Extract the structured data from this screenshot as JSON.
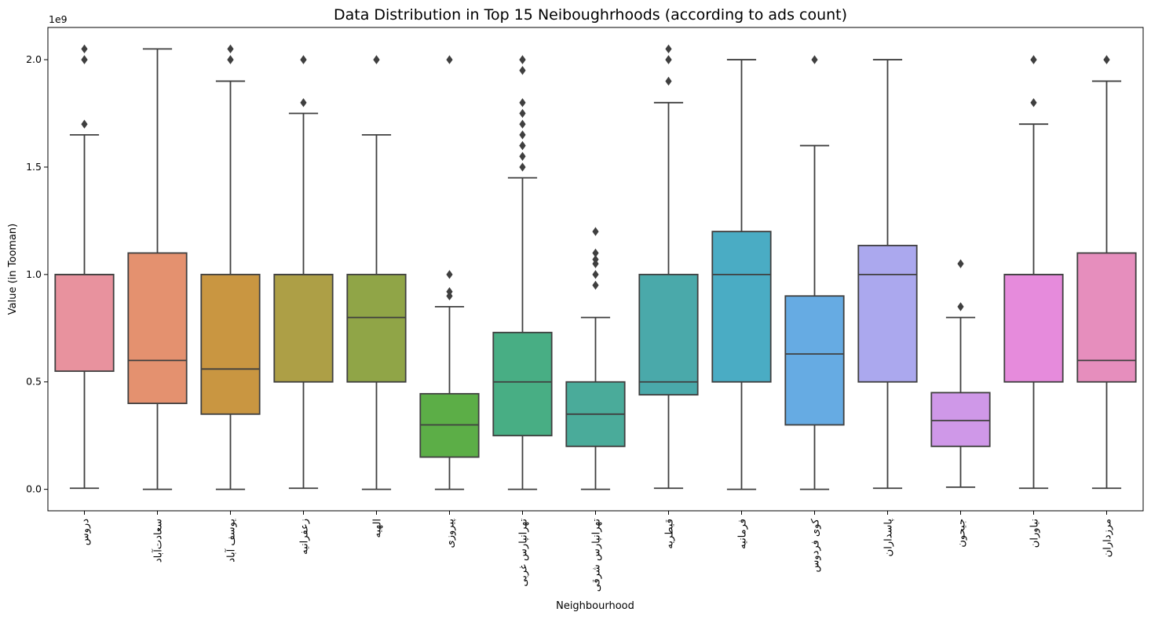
{
  "chart_data": {
    "type": "box",
    "title": "Data Distribution in Top 15 Neiboughrhoods (according to ads count)",
    "xlabel": "Neighbourhood",
    "ylabel": "Value (in Tooman)",
    "y_offset_label": "1e9",
    "ylim": [
      -0.1,
      2.15
    ],
    "y_ticks": [
      0.0,
      0.5,
      1.0,
      1.5,
      2.0
    ],
    "y_tick_labels": [
      "0.0",
      "0.5",
      "1.0",
      "1.5",
      "2.0"
    ],
    "grid": false,
    "categories": [
      {
        "name": "دروس",
        "color": "#e8929e",
        "whisker_low": 0.005,
        "q1": 0.55,
        "median": 1.0,
        "q3": 1.0,
        "whisker_high": 1.65,
        "outliers": [
          1.7,
          2.0,
          2.0,
          2.05
        ]
      },
      {
        "name": "سعادت‌آباد",
        "color": "#e4916f",
        "whisker_low": 0.0,
        "q1": 0.4,
        "median": 0.6,
        "q3": 1.1,
        "whisker_high": 2.05,
        "outliers": []
      },
      {
        "name": "یوسف آباد",
        "color": "#c99641",
        "whisker_low": 0.0,
        "q1": 0.35,
        "median": 0.56,
        "q3": 1.0,
        "whisker_high": 1.9,
        "outliers": [
          2.0,
          2.0,
          2.05
        ]
      },
      {
        "name": "زعفرانیه",
        "color": "#ad9f46",
        "whisker_low": 0.005,
        "q1": 0.5,
        "median": 1.0,
        "q3": 1.0,
        "whisker_high": 1.75,
        "outliers": [
          1.8,
          2.0,
          2.0
        ]
      },
      {
        "name": "الهیه",
        "color": "#90a547",
        "whisker_low": 0.0,
        "q1": 0.5,
        "median": 0.8,
        "q3": 1.0,
        "whisker_high": 1.65,
        "outliers": [
          2.0,
          2.0
        ]
      },
      {
        "name": "پیروزی",
        "color": "#5cae47",
        "whisker_low": 0.0,
        "q1": 0.15,
        "median": 0.3,
        "q3": 0.445,
        "whisker_high": 0.85,
        "outliers": [
          0.9,
          0.92,
          1.0,
          2.0
        ]
      },
      {
        "name": "تهرانپارس غربی",
        "color": "#48ae84",
        "whisker_low": 0.0,
        "q1": 0.25,
        "median": 0.5,
        "q3": 0.73,
        "whisker_high": 1.45,
        "outliers": [
          1.5,
          1.55,
          1.6,
          1.6,
          1.65,
          1.7,
          1.75,
          1.8,
          1.95,
          2.0,
          2.0
        ]
      },
      {
        "name": "تهرانپارس شرقی",
        "color": "#4aab9a",
        "whisker_low": 0.0,
        "q1": 0.2,
        "median": 0.35,
        "q3": 0.5,
        "whisker_high": 0.8,
        "outliers": [
          0.95,
          1.0,
          1.05,
          1.07,
          1.1,
          1.2
        ]
      },
      {
        "name": "قیطریه",
        "color": "#4aa9aa",
        "whisker_low": 0.005,
        "q1": 0.44,
        "median": 0.5,
        "q3": 1.0,
        "whisker_high": 1.8,
        "outliers": [
          1.9,
          2.0,
          2.0,
          2.05
        ]
      },
      {
        "name": "فرمانیه",
        "color": "#4aacc4",
        "whisker_low": 0.0,
        "q1": 0.5,
        "median": 1.0,
        "q3": 1.2,
        "whisker_high": 2.0,
        "outliers": []
      },
      {
        "name": "کوی فردوس",
        "color": "#66abe3",
        "whisker_low": 0.0,
        "q1": 0.3,
        "median": 0.63,
        "q3": 0.9,
        "whisker_high": 1.6,
        "outliers": [
          2.0
        ]
      },
      {
        "name": "پاسداران",
        "color": "#aba8ee",
        "whisker_low": 0.005,
        "q1": 0.5,
        "median": 1.0,
        "q3": 1.135,
        "whisker_high": 2.0,
        "outliers": []
      },
      {
        "name": "جیحون",
        "color": "#cf98e8",
        "whisker_low": 0.01,
        "q1": 0.2,
        "median": 0.32,
        "q3": 0.45,
        "whisker_high": 0.8,
        "outliers": [
          0.85,
          1.05
        ]
      },
      {
        "name": "نیاوران",
        "color": "#e68bdc",
        "whisker_low": 0.005,
        "q1": 0.5,
        "median": 1.0,
        "q3": 1.0,
        "whisker_high": 1.7,
        "outliers": [
          1.8,
          2.0,
          2.0
        ]
      },
      {
        "name": "مرزداران",
        "color": "#e68ebd",
        "whisker_low": 0.005,
        "q1": 0.5,
        "median": 0.6,
        "q3": 1.1,
        "whisker_high": 1.9,
        "outliers": [
          2.0,
          2.0
        ]
      }
    ]
  }
}
